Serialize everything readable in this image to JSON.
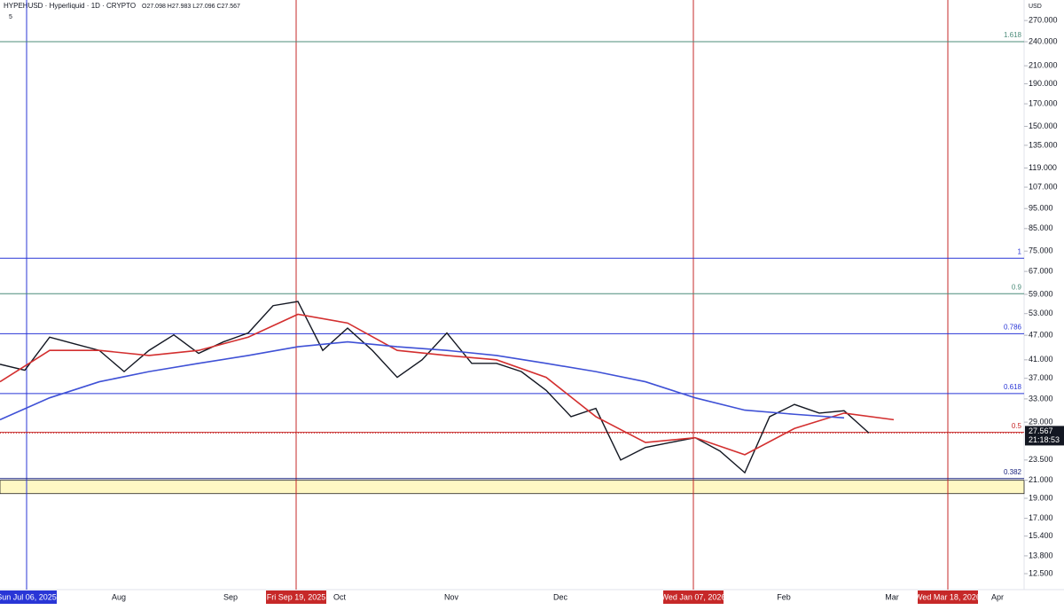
{
  "header": {
    "symbol": "HYPEHUSD · Hyperliquid · 1D · CRYPTO",
    "ohlc": "O27.098 H27.983 L27.096 C27.567",
    "indicator": "5",
    "currency": "USD"
  },
  "price_tag": {
    "price": "27.567",
    "countdown": "21:18:53"
  },
  "chart_data": {
    "type": "line",
    "log_scale": true,
    "ylim": [
      11.44,
      302.6
    ],
    "yticks": [
      {
        "value": 12.5,
        "label": "12.500"
      },
      {
        "value": 13.8,
        "label": "13.800"
      },
      {
        "value": 15.4,
        "label": "15.400"
      },
      {
        "value": 17,
        "label": "17.000"
      },
      {
        "value": 19,
        "label": "19.000"
      },
      {
        "value": 21,
        "label": "21.000"
      },
      {
        "value": 23.5,
        "label": "23.500"
      },
      {
        "value": 29,
        "label": "29.000"
      },
      {
        "value": 33,
        "label": "33.000"
      },
      {
        "value": 37,
        "label": "37.000"
      },
      {
        "value": 41,
        "label": "41.000"
      },
      {
        "value": 47,
        "label": "47.000"
      },
      {
        "value": 53,
        "label": "53.000"
      },
      {
        "value": 59,
        "label": "59.000"
      },
      {
        "value": 67,
        "label": "67.000"
      },
      {
        "value": 75,
        "label": "75.000"
      },
      {
        "value": 85,
        "label": "85.000"
      },
      {
        "value": 95,
        "label": "95.000"
      },
      {
        "value": 107,
        "label": "107.000"
      },
      {
        "value": 119,
        "label": "119.000"
      },
      {
        "value": 135,
        "label": "135.000"
      },
      {
        "value": 150,
        "label": "150.000"
      },
      {
        "value": 170,
        "label": "170.000"
      },
      {
        "value": 190,
        "label": "190.000"
      },
      {
        "value": 210,
        "label": "210.000"
      },
      {
        "value": 240,
        "label": "240.000"
      },
      {
        "value": 270,
        "label": "270.000"
      }
    ],
    "x_labels": [
      "Sun Jul 06, 2025",
      "Aug",
      "Sep",
      "Fri Sep 19, 2025",
      "Oct",
      "Nov",
      "Dec",
      "Wed Jan 07, 2026",
      "Feb",
      "Mar",
      "Wed Mar 18, 2026",
      "Apr"
    ],
    "series": [
      {
        "color": "#131722",
        "values": [
          40,
          38.7,
          46.5,
          44.8,
          43.2,
          38.4,
          43.2,
          47.1,
          42.5,
          45.3,
          47.6,
          55.4,
          56.7,
          43.2,
          48.9,
          43.2,
          37.2,
          41.0,
          47.6,
          40.2,
          40.2,
          38.4,
          34.6,
          29.9,
          31.3,
          23.5,
          25.2,
          25.9,
          26.6,
          24.7,
          21.9,
          29.9,
          32.0,
          30.5,
          30.9,
          27.3
        ]
      },
      {
        "color": "#d32f2f",
        "values": [
          36.3,
          43.2,
          43.2,
          42.0,
          43.2,
          46.5,
          52.8,
          50.3,
          43.2,
          42.0,
          41.0,
          37.2,
          29.9,
          25.9,
          26.6,
          24.2,
          28.0,
          30.5,
          29.4
        ]
      },
      {
        "color": "#3f51d6",
        "values": [
          29.4,
          33.2,
          36.3,
          38.4,
          40.2,
          42.0,
          44.1,
          45.3,
          44.1,
          43.2,
          42.0,
          40.2,
          38.4,
          36.3,
          33.2,
          31.0,
          30.3,
          29.7
        ]
      }
    ],
    "fib_levels": [
      {
        "label": 1.618,
        "price": 240,
        "color": "#4c8c7a"
      },
      {
        "label": 1,
        "price": 72.1,
        "color": "#2936d6"
      },
      {
        "label": 0.9,
        "price": 59.2,
        "color": "#4c8c7a"
      },
      {
        "label": 0.786,
        "price": 47.4,
        "color": "#2936d6"
      },
      {
        "label": 0.618,
        "price": 34.0,
        "color": "#2936d6"
      },
      {
        "label": 0.5,
        "price": 27.4,
        "color": "#c62828"
      },
      {
        "label": 0.382,
        "price": 21.2,
        "color": "#1a237e"
      }
    ],
    "support_zone": [
      19.5,
      21.0
    ]
  }
}
